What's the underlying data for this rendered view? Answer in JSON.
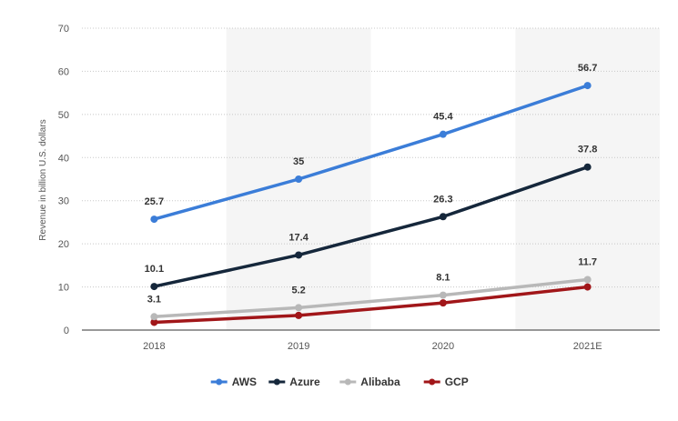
{
  "chart_data": {
    "type": "line",
    "title": "",
    "xlabel": "",
    "ylabel": "Revenue in billion U.S. dollars",
    "categories": [
      "2018",
      "2019",
      "2020",
      "2021E"
    ],
    "ylim": [
      0,
      70
    ],
    "yticks": [
      "0",
      "10",
      "20",
      "30",
      "40",
      "50",
      "60",
      "70"
    ],
    "grid": "horizontal-dotted",
    "legend_position": "bottom-center",
    "series": [
      {
        "name": "AWS",
        "color": "#3b7dd8",
        "values": [
          25.7,
          35,
          45.4,
          56.7
        ],
        "labels": [
          "25.7",
          "35",
          "45.4",
          "56.7"
        ]
      },
      {
        "name": "Azure",
        "color": "#15273b",
        "values": [
          10.1,
          17.4,
          26.3,
          37.8
        ],
        "labels": [
          "10.1",
          "17.4",
          "26.3",
          "37.8"
        ]
      },
      {
        "name": "Alibaba",
        "color": "#b8b8b8",
        "values": [
          3.1,
          5.2,
          8.1,
          11.7
        ],
        "labels": [
          "3.1",
          "5.2",
          "8.1",
          "11.7"
        ]
      },
      {
        "name": "GCP",
        "color": "#a11619",
        "values": [
          1.8,
          3.4,
          6.3,
          10
        ],
        "labels": null
      }
    ]
  }
}
